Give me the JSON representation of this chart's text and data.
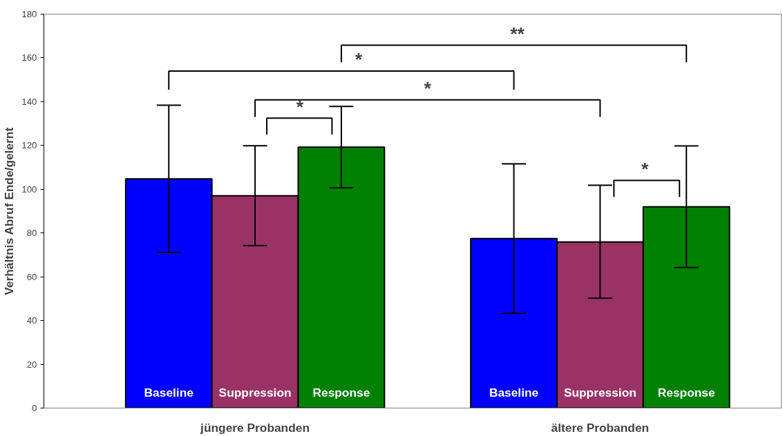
{
  "chart_data": {
    "type": "bar",
    "categories": [
      "jüngere Probanden",
      "ältere Probanden"
    ],
    "ylabel": "Verhältnis Abruf Ende/gelernt",
    "ylim": [
      0,
      180
    ],
    "yticks": [
      0,
      20,
      40,
      60,
      80,
      100,
      120,
      140,
      160,
      180
    ],
    "grid": false,
    "series": [
      {
        "name": "Baseline",
        "color": "#0000ff",
        "values": [
          104.7,
          77.5
        ],
        "errors": [
          [
            71.2,
            138.4
          ],
          [
            43.3,
            111.6
          ]
        ]
      },
      {
        "name": "Suppression",
        "color": "#993366",
        "values": [
          97.0,
          75.9
        ],
        "errors": [
          [
            74.2,
            119.9
          ],
          [
            50.2,
            101.8
          ]
        ]
      },
      {
        "name": "Response",
        "color": "#008000",
        "values": [
          119.2,
          92.0
        ],
        "errors": [
          [
            100.6,
            137.8
          ],
          [
            64.2,
            119.8
          ]
        ]
      }
    ],
    "annotations": [
      "**",
      "*",
      "*",
      "*",
      "*"
    ]
  }
}
